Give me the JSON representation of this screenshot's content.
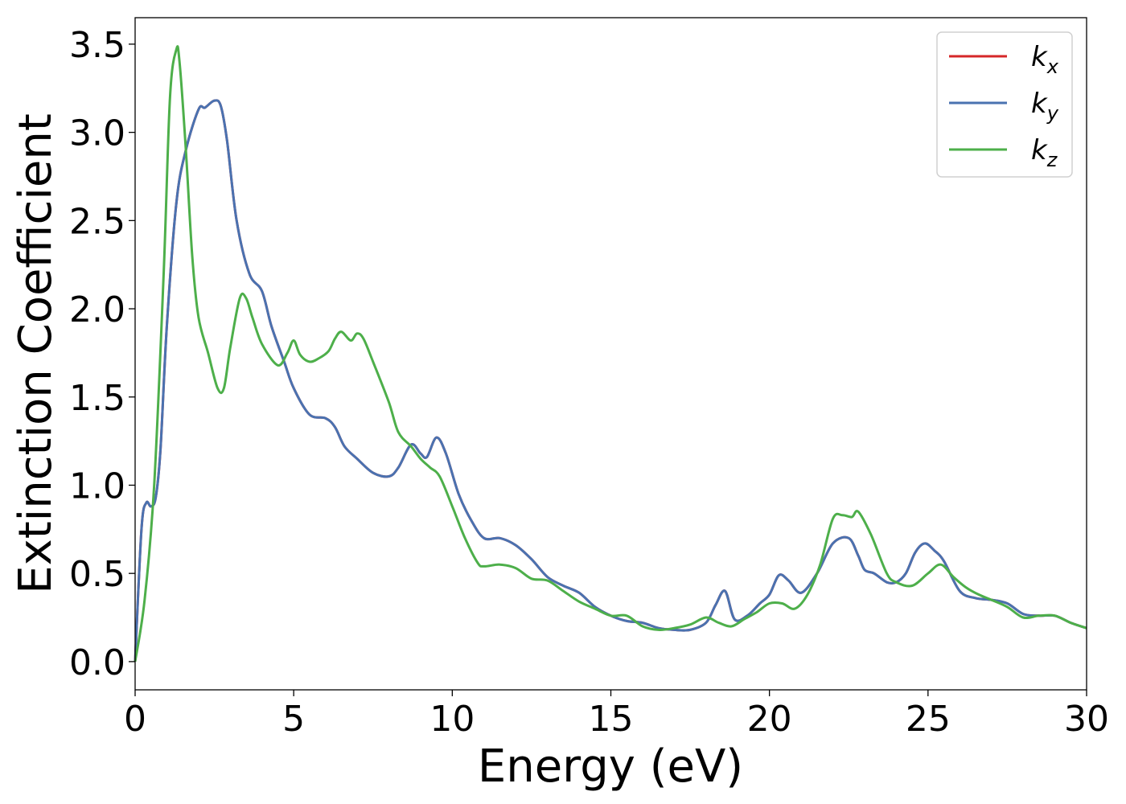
{
  "chart_data": {
    "type": "line",
    "xlabel": "Energy (eV)",
    "ylabel": "Extinction Coefficient",
    "xlim": [
      0,
      30
    ],
    "ylim": [
      -0.16,
      3.65
    ],
    "xticks": [
      "0",
      "5",
      "10",
      "15",
      "20",
      "25",
      "30"
    ],
    "yticks": [
      "0.0",
      "0.5",
      "1.0",
      "1.5",
      "2.0",
      "2.5",
      "3.0",
      "3.5"
    ],
    "grid": false,
    "legend_position": "top-right",
    "series": [
      {
        "name": "k_x",
        "label_base": "k",
        "label_sub": "x",
        "color": "#d62728",
        "x": [
          0,
          0.2,
          0.35,
          0.5,
          0.65,
          0.8,
          1.0,
          1.3,
          1.6,
          2.0,
          2.2,
          2.5,
          2.7,
          2.9,
          3.2,
          3.6,
          4.0,
          4.3,
          4.7,
          5.0,
          5.5,
          6.0,
          6.3,
          6.6,
          7.0,
          7.5,
          8.0,
          8.3,
          8.7,
          9.0,
          9.2,
          9.5,
          9.8,
          10.2,
          10.6,
          11.0,
          11.5,
          12.0,
          12.5,
          13.0,
          13.5,
          14.0,
          14.5,
          15.0,
          15.5,
          16.0,
          16.5,
          17.0,
          17.5,
          18.0,
          18.3,
          18.6,
          18.9,
          19.3,
          19.7,
          20.0,
          20.3,
          20.6,
          21.0,
          21.5,
          22.0,
          22.5,
          22.8,
          23.0,
          23.3,
          23.7,
          24.0,
          24.3,
          24.6,
          24.9,
          25.2,
          25.5,
          26.0,
          26.5,
          27.0,
          27.5,
          28.0,
          28.5,
          29.0,
          29.5,
          30.0
        ],
        "y": [
          0.0,
          0.75,
          0.9,
          0.88,
          0.93,
          1.2,
          1.9,
          2.6,
          2.9,
          3.13,
          3.14,
          3.18,
          3.15,
          2.95,
          2.5,
          2.2,
          2.1,
          1.9,
          1.7,
          1.55,
          1.4,
          1.38,
          1.33,
          1.22,
          1.15,
          1.07,
          1.05,
          1.1,
          1.23,
          1.18,
          1.16,
          1.27,
          1.18,
          0.95,
          0.8,
          0.7,
          0.7,
          0.66,
          0.58,
          0.48,
          0.43,
          0.39,
          0.31,
          0.26,
          0.23,
          0.22,
          0.19,
          0.18,
          0.18,
          0.22,
          0.32,
          0.4,
          0.24,
          0.26,
          0.33,
          0.38,
          0.49,
          0.46,
          0.39,
          0.5,
          0.67,
          0.7,
          0.6,
          0.52,
          0.5,
          0.45,
          0.45,
          0.5,
          0.62,
          0.67,
          0.63,
          0.57,
          0.4,
          0.36,
          0.35,
          0.33,
          0.27,
          0.26,
          0.26,
          0.22,
          0.19
        ]
      },
      {
        "name": "k_y",
        "label_base": "k",
        "label_sub": "y",
        "color": "#4a72b0",
        "x": [
          0,
          0.2,
          0.35,
          0.5,
          0.65,
          0.8,
          1.0,
          1.3,
          1.6,
          2.0,
          2.2,
          2.5,
          2.7,
          2.9,
          3.2,
          3.6,
          4.0,
          4.3,
          4.7,
          5.0,
          5.5,
          6.0,
          6.3,
          6.6,
          7.0,
          7.5,
          8.0,
          8.3,
          8.7,
          9.0,
          9.2,
          9.5,
          9.8,
          10.2,
          10.6,
          11.0,
          11.5,
          12.0,
          12.5,
          13.0,
          13.5,
          14.0,
          14.5,
          15.0,
          15.5,
          16.0,
          16.5,
          17.0,
          17.5,
          18.0,
          18.3,
          18.6,
          18.9,
          19.3,
          19.7,
          20.0,
          20.3,
          20.6,
          21.0,
          21.5,
          22.0,
          22.5,
          22.8,
          23.0,
          23.3,
          23.7,
          24.0,
          24.3,
          24.6,
          24.9,
          25.2,
          25.5,
          26.0,
          26.5,
          27.0,
          27.5,
          28.0,
          28.5,
          29.0,
          29.5,
          30.0
        ],
        "y": [
          0.0,
          0.75,
          0.9,
          0.88,
          0.93,
          1.2,
          1.9,
          2.6,
          2.9,
          3.13,
          3.14,
          3.18,
          3.15,
          2.95,
          2.5,
          2.2,
          2.1,
          1.9,
          1.7,
          1.55,
          1.4,
          1.38,
          1.33,
          1.22,
          1.15,
          1.07,
          1.05,
          1.1,
          1.23,
          1.18,
          1.16,
          1.27,
          1.18,
          0.95,
          0.8,
          0.7,
          0.7,
          0.66,
          0.58,
          0.48,
          0.43,
          0.39,
          0.31,
          0.26,
          0.23,
          0.22,
          0.19,
          0.18,
          0.18,
          0.22,
          0.32,
          0.4,
          0.24,
          0.26,
          0.33,
          0.38,
          0.49,
          0.46,
          0.39,
          0.5,
          0.67,
          0.7,
          0.6,
          0.52,
          0.5,
          0.45,
          0.45,
          0.5,
          0.62,
          0.67,
          0.63,
          0.57,
          0.4,
          0.36,
          0.35,
          0.33,
          0.27,
          0.26,
          0.26,
          0.22,
          0.19
        ]
      },
      {
        "name": "k_z",
        "label_base": "k",
        "label_sub": "z",
        "color": "#4daf4a",
        "x": [
          0,
          0.3,
          0.6,
          0.9,
          1.1,
          1.3,
          1.4,
          1.6,
          1.8,
          2.0,
          2.3,
          2.6,
          2.8,
          3.0,
          3.3,
          3.5,
          3.7,
          4.0,
          4.5,
          4.8,
          5.0,
          5.2,
          5.5,
          5.8,
          6.1,
          6.3,
          6.5,
          6.8,
          7.0,
          7.2,
          7.5,
          8.0,
          8.3,
          8.7,
          9.0,
          9.3,
          9.6,
          10.0,
          10.4,
          10.8,
          11.0,
          11.5,
          12.0,
          12.5,
          13.0,
          13.5,
          14.0,
          14.5,
          15.0,
          15.5,
          16.0,
          16.5,
          17.0,
          17.5,
          18.0,
          18.4,
          18.8,
          19.2,
          19.6,
          20.0,
          20.4,
          20.8,
          21.2,
          21.6,
          22.0,
          22.3,
          22.6,
          22.8,
          23.2,
          23.7,
          24.0,
          24.5,
          25.0,
          25.4,
          25.8,
          26.2,
          26.6,
          27.0,
          27.5,
          28.0,
          28.5,
          29.0,
          29.5,
          30.0
        ],
        "y": [
          0.0,
          0.35,
          1.0,
          2.2,
          3.2,
          3.47,
          3.4,
          2.9,
          2.3,
          1.95,
          1.75,
          1.55,
          1.55,
          1.78,
          2.06,
          2.06,
          1.95,
          1.8,
          1.68,
          1.75,
          1.82,
          1.74,
          1.7,
          1.72,
          1.76,
          1.83,
          1.87,
          1.82,
          1.86,
          1.83,
          1.7,
          1.47,
          1.3,
          1.22,
          1.15,
          1.1,
          1.05,
          0.88,
          0.7,
          0.56,
          0.54,
          0.55,
          0.53,
          0.47,
          0.46,
          0.4,
          0.34,
          0.3,
          0.26,
          0.26,
          0.2,
          0.18,
          0.19,
          0.21,
          0.25,
          0.22,
          0.2,
          0.24,
          0.28,
          0.33,
          0.33,
          0.3,
          0.38,
          0.55,
          0.81,
          0.83,
          0.82,
          0.85,
          0.72,
          0.5,
          0.45,
          0.43,
          0.5,
          0.55,
          0.48,
          0.42,
          0.38,
          0.35,
          0.31,
          0.25,
          0.26,
          0.26,
          0.22,
          0.19
        ]
      }
    ]
  }
}
